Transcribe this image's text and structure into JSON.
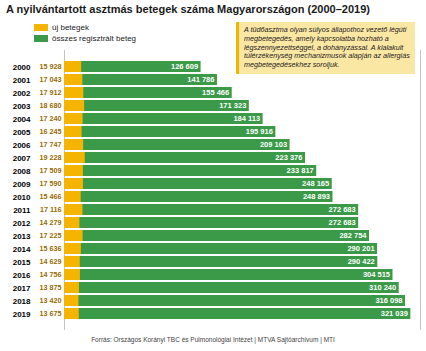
{
  "chart_data": {
    "type": "bar",
    "orientation": "horizontal",
    "title": "A nyilvántartott asztmás betegek száma Magyarországon (2000–2019)",
    "categories": [
      "2000",
      "2001",
      "2002",
      "2003",
      "2004",
      "2005",
      "2006",
      "2007",
      "2008",
      "2009",
      "2010",
      "2011",
      "2012",
      "2013",
      "2014",
      "2015",
      "2016",
      "2017",
      "2018",
      "2019"
    ],
    "series": [
      {
        "name": "összes regisztrált beteg",
        "color": "#3a9a48",
        "values": [
          126609,
          141786,
          155466,
          171323,
          184113,
          195916,
          209103,
          223376,
          233817,
          248165,
          248893,
          272683,
          272683,
          282754,
          290201,
          290422,
          304515,
          310240,
          316098,
          321039
        ],
        "value_labels": [
          "126 609",
          "141 786",
          "155 466",
          "171 323",
          "184 113",
          "195 916",
          "209 103",
          "223 376",
          "233 817",
          "248 165",
          "248 893",
          "272 683",
          "272 683",
          "282 754",
          "290 201",
          "290 422",
          "304 515",
          "310 240",
          "316 098",
          "321 039"
        ]
      },
      {
        "name": "új betegek",
        "color": "#f5b400",
        "values": [
          15928,
          17043,
          17912,
          18680,
          17240,
          16245,
          17747,
          19228,
          17509,
          17590,
          15466,
          17116,
          14279,
          17225,
          15636,
          14629,
          14756,
          13875,
          13420,
          13675
        ],
        "value_labels": [
          "15 928",
          "17 043",
          "17 912",
          "18 680",
          "17 240",
          "16 245",
          "17 747",
          "19 228",
          "17 509",
          "17 590",
          "15 466",
          "17 116",
          "14 279",
          "17 225",
          "15 636",
          "14 629",
          "14 756",
          "13 875",
          "13 420",
          "13 675"
        ]
      }
    ],
    "xlim": [
      0,
      330000
    ],
    "stacked": false,
    "data_labels": true,
    "tick_labels": "y",
    "grid": false,
    "legend": "top-left",
    "annotation": "A tüdőasztma olyan súlyos állapothoz vezető légúti megbetegedés, amely kapcsolatba hozható a légszennyezettséggel, a dohányzással. A kialakult túlérzékenység mechanizmusok alapján az allergiás megbetegedésekhez soroljuk.",
    "source": "Forrás: Országos Korányi TBC és Pulmonológiai Intézet | MTVA Sajtóarchívum | MTI"
  }
}
